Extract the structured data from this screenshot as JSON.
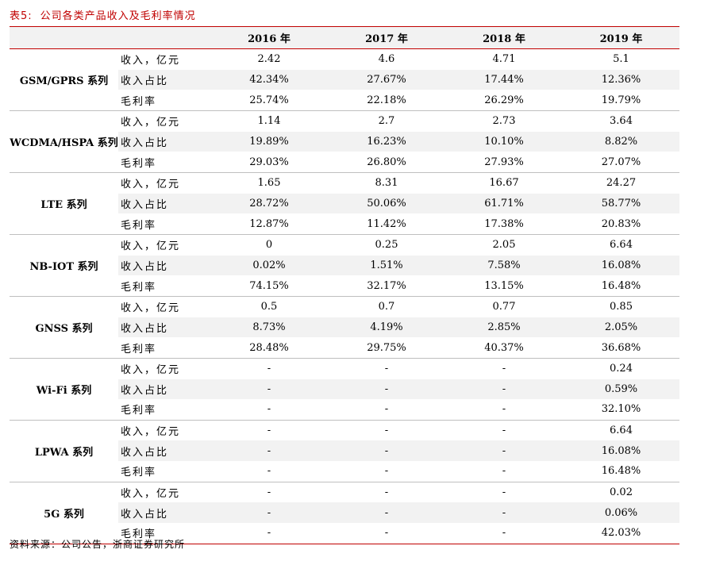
{
  "caption": {
    "label": "表5:",
    "title": "公司各类产品收入及毛利率情况"
  },
  "header": {
    "years": [
      "2016 年",
      "2017 年",
      "2018 年",
      "2019 年"
    ]
  },
  "groups": [
    {
      "name": "GSM/GPRS 系列",
      "rows": [
        {
          "metric": "收入，亿元",
          "values": [
            "2.42",
            "4.6",
            "4.71",
            "5.1"
          ]
        },
        {
          "metric": "收入占比",
          "values": [
            "42.34%",
            "27.67%",
            "17.44%",
            "12.36%"
          ]
        },
        {
          "metric": "毛利率",
          "values": [
            "25.74%",
            "22.18%",
            "26.29%",
            "19.79%"
          ]
        }
      ]
    },
    {
      "name": "WCDMA/HSPA 系列",
      "rows": [
        {
          "metric": "收入，亿元",
          "values": [
            "1.14",
            "2.7",
            "2.73",
            "3.64"
          ]
        },
        {
          "metric": "收入占比",
          "values": [
            "19.89%",
            "16.23%",
            "10.10%",
            "8.82%"
          ]
        },
        {
          "metric": "毛利率",
          "values": [
            "29.03%",
            "26.80%",
            "27.93%",
            "27.07%"
          ]
        }
      ]
    },
    {
      "name": "LTE 系列",
      "rows": [
        {
          "metric": "收入，亿元",
          "values": [
            "1.65",
            "8.31",
            "16.67",
            "24.27"
          ]
        },
        {
          "metric": "收入占比",
          "values": [
            "28.72%",
            "50.06%",
            "61.71%",
            "58.77%"
          ]
        },
        {
          "metric": "毛利率",
          "values": [
            "12.87%",
            "11.42%",
            "17.38%",
            "20.83%"
          ]
        }
      ]
    },
    {
      "name": "NB-IOT 系列",
      "rows": [
        {
          "metric": "收入，亿元",
          "values": [
            "0",
            "0.25",
            "2.05",
            "6.64"
          ]
        },
        {
          "metric": "收入占比",
          "values": [
            "0.02%",
            "1.51%",
            "7.58%",
            "16.08%"
          ]
        },
        {
          "metric": "毛利率",
          "values": [
            "74.15%",
            "32.17%",
            "13.15%",
            "16.48%"
          ]
        }
      ]
    },
    {
      "name": "GNSS 系列",
      "rows": [
        {
          "metric": "收入，亿元",
          "values": [
            "0.5",
            "0.7",
            "0.77",
            "0.85"
          ]
        },
        {
          "metric": "收入占比",
          "values": [
            "8.73%",
            "4.19%",
            "2.85%",
            "2.05%"
          ]
        },
        {
          "metric": "毛利率",
          "values": [
            "28.48%",
            "29.75%",
            "40.37%",
            "36.68%"
          ]
        }
      ]
    },
    {
      "name": "Wi-Fi 系列",
      "rows": [
        {
          "metric": "收入，亿元",
          "values": [
            "-",
            "-",
            "-",
            "0.24"
          ]
        },
        {
          "metric": "收入占比",
          "values": [
            "-",
            "-",
            "-",
            "0.59%"
          ]
        },
        {
          "metric": "毛利率",
          "values": [
            "-",
            "-",
            "-",
            "32.10%"
          ]
        }
      ]
    },
    {
      "name": "LPWA 系列",
      "rows": [
        {
          "metric": "收入，亿元",
          "values": [
            "-",
            "-",
            "-",
            "6.64"
          ]
        },
        {
          "metric": "收入占比",
          "values": [
            "-",
            "-",
            "-",
            "16.08%"
          ]
        },
        {
          "metric": "毛利率",
          "values": [
            "-",
            "-",
            "-",
            "16.48%"
          ]
        }
      ]
    },
    {
      "name": "5G 系列",
      "rows": [
        {
          "metric": "收入，亿元",
          "values": [
            "-",
            "-",
            "-",
            "0.02"
          ]
        },
        {
          "metric": "收入占比",
          "values": [
            "-",
            "-",
            "-",
            "0.06%"
          ]
        },
        {
          "metric": "毛利率",
          "values": [
            "-",
            "-",
            "-",
            "42.03%"
          ]
        }
      ]
    }
  ],
  "source": "资料来源：公司公告，浙商证券研究所",
  "colors": {
    "accent": "#c00000",
    "shade": "#f2f2f2",
    "divider": "#bfbfbf"
  }
}
